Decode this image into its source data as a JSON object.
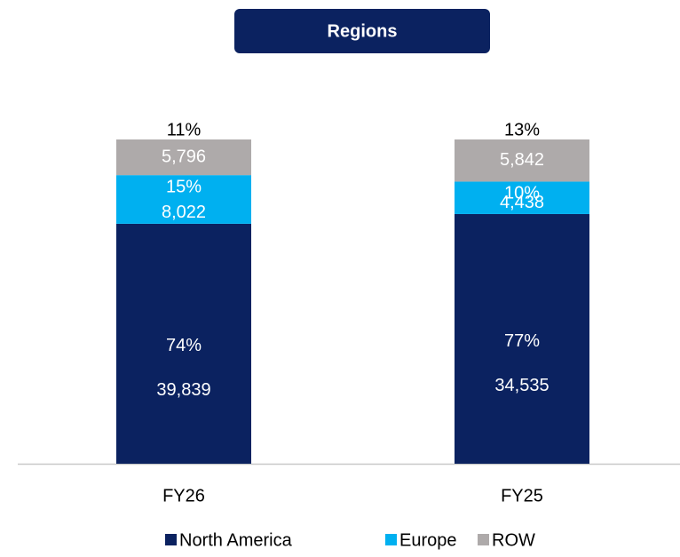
{
  "chart_data": {
    "type": "stacked_bar",
    "title": "Regions",
    "categories": [
      "FY26",
      "FY25"
    ],
    "ylim": [
      0,
      100
    ],
    "series": [
      {
        "name": "North America",
        "color": "#0b2260",
        "values": [
          74,
          77
        ],
        "value_labels": [
          "74%",
          "77%"
        ],
        "amounts": [
          39839,
          34535
        ],
        "amount_labels": [
          "39,839",
          "34,535"
        ]
      },
      {
        "name": "Europe",
        "color": "#00b0f0",
        "values": [
          15,
          10
        ],
        "value_labels": [
          "15%",
          "10%"
        ],
        "amounts": [
          8022,
          4438
        ],
        "amount_labels": [
          "8,022",
          "4,438"
        ]
      },
      {
        "name": "ROW",
        "color": "#aeaaaa",
        "values": [
          11,
          13
        ],
        "value_labels": [
          "11%",
          "13%"
        ],
        "amounts": [
          5796,
          5842
        ],
        "amount_labels": [
          "5,796",
          "5,842"
        ]
      }
    ]
  }
}
